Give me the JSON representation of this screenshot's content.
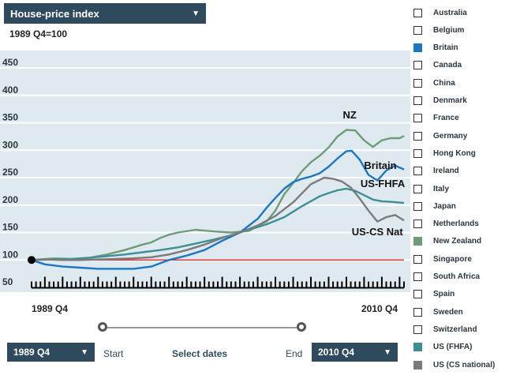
{
  "header": {
    "indicator": "House-price index",
    "base_note": "1989 Q4=100"
  },
  "controls": {
    "start_value": "1989 Q4",
    "start_label": "Start",
    "select_dates": "Select dates",
    "end_label": "End",
    "end_value": "2010 Q4"
  },
  "legend": [
    {
      "label": "Australia",
      "checked": false,
      "color": ""
    },
    {
      "label": "Belgium",
      "checked": false,
      "color": ""
    },
    {
      "label": "Britain",
      "checked": true,
      "color": "#1a78c2"
    },
    {
      "label": "Canada",
      "checked": false,
      "color": ""
    },
    {
      "label": "China",
      "checked": false,
      "color": ""
    },
    {
      "label": "Denmark",
      "checked": false,
      "color": ""
    },
    {
      "label": "France",
      "checked": false,
      "color": ""
    },
    {
      "label": "Germany",
      "checked": false,
      "color": ""
    },
    {
      "label": "Hong Kong",
      "checked": false,
      "color": ""
    },
    {
      "label": "Ireland",
      "checked": false,
      "color": ""
    },
    {
      "label": "Italy",
      "checked": false,
      "color": ""
    },
    {
      "label": "Japan",
      "checked": false,
      "color": ""
    },
    {
      "label": "Netherlands",
      "checked": false,
      "color": ""
    },
    {
      "label": "New Zealand",
      "checked": true,
      "color": "#6e9c78"
    },
    {
      "label": "Singapore",
      "checked": false,
      "color": ""
    },
    {
      "label": "South Africa",
      "checked": false,
      "color": ""
    },
    {
      "label": "Spain",
      "checked": false,
      "color": ""
    },
    {
      "label": "Sweden",
      "checked": false,
      "color": ""
    },
    {
      "label": "Switzerland",
      "checked": false,
      "color": ""
    },
    {
      "label": "US (FHFA)",
      "checked": true,
      "color": "#3e8f94"
    },
    {
      "label": "US (CS national)",
      "checked": true,
      "color": "#7b7b7b"
    }
  ],
  "chart_data": {
    "type": "line",
    "title": "House-price index",
    "subtitle": "1989 Q4=100",
    "ylim": [
      50,
      450
    ],
    "yticks": [
      50,
      100,
      150,
      200,
      250,
      300,
      350,
      400,
      450
    ],
    "xlim": [
      1989.75,
      2010.75
    ],
    "x_tick_labels": [
      "1989 Q4",
      "2010 Q4"
    ],
    "grid": true,
    "baseline": 100,
    "series": [
      {
        "name": "NZ",
        "color": "#6e9c78",
        "points": [
          [
            1989.75,
            100
          ],
          [
            1991,
            103
          ],
          [
            1992,
            102
          ],
          [
            1993,
            104
          ],
          [
            1994,
            110
          ],
          [
            1995,
            118
          ],
          [
            1996,
            128
          ],
          [
            1996.5,
            132
          ],
          [
            1997,
            140
          ],
          [
            1997.5,
            146
          ],
          [
            1998,
            150
          ],
          [
            1999,
            155
          ],
          [
            2000,
            152
          ],
          [
            2001,
            150
          ],
          [
            2002,
            153
          ],
          [
            2003,
            170
          ],
          [
            2003.5,
            190
          ],
          [
            2004,
            220
          ],
          [
            2004.5,
            240
          ],
          [
            2005,
            262
          ],
          [
            2005.5,
            278
          ],
          [
            2006,
            290
          ],
          [
            2006.5,
            305
          ],
          [
            2007,
            325
          ],
          [
            2007.5,
            337
          ],
          [
            2008,
            336
          ],
          [
            2008.5,
            318
          ],
          [
            2009,
            306
          ],
          [
            2009.5,
            318
          ],
          [
            2010,
            322
          ],
          [
            2010.5,
            322
          ],
          [
            2010.75,
            326
          ]
        ]
      },
      {
        "name": "Britain",
        "color": "#1a78c2",
        "points": [
          [
            1989.75,
            100
          ],
          [
            1990.5,
            92
          ],
          [
            1991.5,
            88
          ],
          [
            1992.5,
            86
          ],
          [
            1993.5,
            84
          ],
          [
            1994.5,
            84
          ],
          [
            1995.5,
            84
          ],
          [
            1996.5,
            88
          ],
          [
            1997.5,
            100
          ],
          [
            1998.5,
            108
          ],
          [
            1999.5,
            118
          ],
          [
            2000.5,
            135
          ],
          [
            2001.5,
            150
          ],
          [
            2002.5,
            175
          ],
          [
            2003,
            195
          ],
          [
            2003.5,
            213
          ],
          [
            2004,
            230
          ],
          [
            2004.5,
            242
          ],
          [
            2005,
            248
          ],
          [
            2005.5,
            252
          ],
          [
            2006,
            258
          ],
          [
            2006.5,
            270
          ],
          [
            2007,
            285
          ],
          [
            2007.5,
            298
          ],
          [
            2007.8,
            299
          ],
          [
            2008.25,
            283
          ],
          [
            2008.75,
            255
          ],
          [
            2009.25,
            245
          ],
          [
            2009.75,
            263
          ],
          [
            2010.25,
            272
          ],
          [
            2010.75,
            265
          ]
        ]
      },
      {
        "name": "US-FHFA",
        "color": "#3e8f94",
        "points": [
          [
            1989.75,
            100
          ],
          [
            1991,
            101
          ],
          [
            1992,
            102
          ],
          [
            1993,
            104
          ],
          [
            1994,
            107
          ],
          [
            1995,
            110
          ],
          [
            1996,
            114
          ],
          [
            1997,
            118
          ],
          [
            1998,
            123
          ],
          [
            1999,
            130
          ],
          [
            2000,
            137
          ],
          [
            2001,
            145
          ],
          [
            2002,
            155
          ],
          [
            2003,
            165
          ],
          [
            2004,
            178
          ],
          [
            2005,
            198
          ],
          [
            2006,
            216
          ],
          [
            2006.5,
            222
          ],
          [
            2007,
            227
          ],
          [
            2007.5,
            230
          ],
          [
            2008,
            226
          ],
          [
            2008.5,
            218
          ],
          [
            2009,
            210
          ],
          [
            2009.5,
            207
          ],
          [
            2010,
            206
          ],
          [
            2010.75,
            204
          ]
        ]
      },
      {
        "name": "US-CS Nat",
        "color": "#7b7b7b",
        "points": [
          [
            1989.75,
            100
          ],
          [
            1990.5,
            101
          ],
          [
            1991.5,
            100
          ],
          [
            1992.5,
            100
          ],
          [
            1993.5,
            101
          ],
          [
            1994.5,
            102
          ],
          [
            1995.5,
            103
          ],
          [
            1996.5,
            105
          ],
          [
            1997.5,
            110
          ],
          [
            1998.5,
            118
          ],
          [
            1999.5,
            128
          ],
          [
            2000.5,
            140
          ],
          [
            2001.5,
            150
          ],
          [
            2002.5,
            163
          ],
          [
            2003.5,
            180
          ],
          [
            2004.5,
            205
          ],
          [
            2005.5,
            238
          ],
          [
            2006.25,
            250
          ],
          [
            2006.75,
            248
          ],
          [
            2007.25,
            243
          ],
          [
            2007.75,
            232
          ],
          [
            2008.25,
            212
          ],
          [
            2008.75,
            190
          ],
          [
            2009.25,
            170
          ],
          [
            2009.75,
            178
          ],
          [
            2010.25,
            182
          ],
          [
            2010.75,
            172
          ]
        ]
      }
    ],
    "annotations": [
      {
        "text": "NZ",
        "x": 2007.3,
        "y": 358
      },
      {
        "text": "Britain",
        "x": 2008.5,
        "y": 266
      },
      {
        "text": "US-FHFA",
        "x": 2008.3,
        "y": 233
      },
      {
        "text": "US-CS Nat",
        "x": 2007.8,
        "y": 145
      }
    ]
  }
}
